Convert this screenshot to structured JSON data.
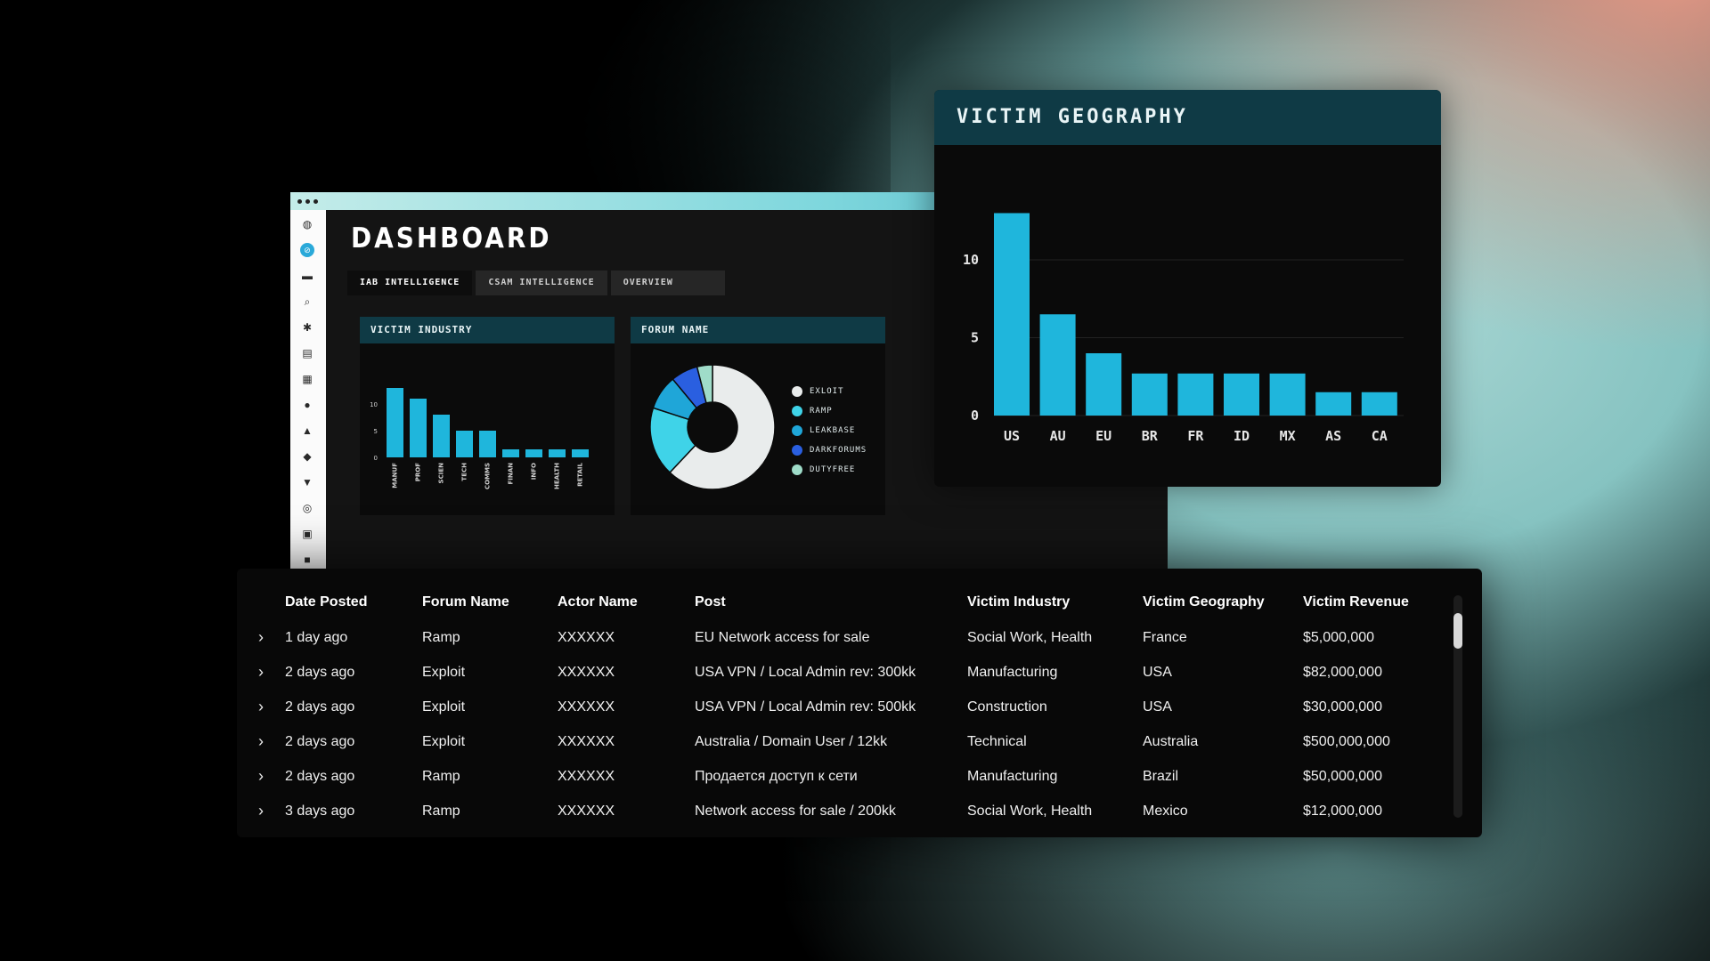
{
  "dashboard": {
    "title": "DASHBOARD",
    "tabs": [
      {
        "label": "IAB INTELLIGENCE",
        "active": true
      },
      {
        "label": "CSAM INTELLIGENCE",
        "active": false
      },
      {
        "label": "OVERVIEW",
        "active": false
      }
    ],
    "sidebar_icons": [
      "logo-icon",
      "compass-icon",
      "folder-icon",
      "search-icon",
      "wand-icon",
      "book-icon",
      "document-icon",
      "globe-icon",
      "lock-icon",
      "chat-icon",
      "cart-icon",
      "target-icon",
      "copy-icon",
      "more-icon"
    ]
  },
  "chart_data": [
    {
      "type": "bar",
      "title": "VICTIM INDUSTRY",
      "categories": [
        "MANUF",
        "PROF",
        "SCIEN",
        "TECH",
        "COMMS",
        "FINAN",
        "INFO",
        "HEALTH",
        "RETAIL"
      ],
      "values": [
        13,
        11,
        8,
        5,
        5,
        1.5,
        1.5,
        1.5,
        1.5
      ],
      "yticks": [
        0,
        5,
        10
      ],
      "ylim": [
        0,
        15
      ],
      "color": "#1fb6dc"
    },
    {
      "type": "pie",
      "title": "FORUM NAME",
      "labels": [
        "EXLOIT",
        "RAMP",
        "LEAKBASE",
        "DARKFORUMS",
        "DUTYFREE"
      ],
      "values": [
        62,
        18,
        9,
        7,
        4
      ],
      "colors": [
        "#e9ecec",
        "#3fd3e8",
        "#1fa6d8",
        "#2a5fe0",
        "#9fdcc9"
      ],
      "donut": true
    },
    {
      "type": "bar",
      "title": "VICTIM GEOGRAPHY",
      "categories": [
        "US",
        "AU",
        "EU",
        "BR",
        "FR",
        "ID",
        "MX",
        "AS",
        "CA"
      ],
      "values": [
        13,
        6.5,
        4,
        2.7,
        2.7,
        2.7,
        2.7,
        1.5,
        1.5
      ],
      "yticks": [
        0,
        5,
        10
      ],
      "ylim": [
        0,
        14
      ],
      "color": "#1fb6dc",
      "grid": true
    }
  ],
  "table": {
    "columns": [
      "Date Posted",
      "Forum Name",
      "Actor Name",
      "Post",
      "Victim Industry",
      "Victim Geography",
      "Victim Revenue"
    ],
    "rows": [
      [
        "1 day ago",
        "Ramp",
        "XXXXXX",
        "EU Network access for sale",
        "Social Work, Health",
        "France",
        "$5,000,000"
      ],
      [
        "2 days ago",
        "Exploit",
        "XXXXXX",
        "USA VPN / Local Admin rev: 300kk",
        "Manufacturing",
        "USA",
        "$82,000,000"
      ],
      [
        "2 days ago",
        "Exploit",
        "XXXXXX",
        "USA VPN / Local Admin rev: 500kk",
        "Construction",
        "USA",
        "$30,000,000"
      ],
      [
        "2 days ago",
        "Exploit",
        "XXXXXX",
        "Australia / Domain User / 12kk",
        "Technical",
        "Australia",
        "$500,000,000"
      ],
      [
        "2 days ago",
        "Ramp",
        "XXXXXX",
        "Продается доступ к сети",
        "Manufacturing",
        "Brazil",
        "$50,000,000"
      ],
      [
        "3 days ago",
        "Ramp",
        "XXXXXX",
        "Network access for sale / 200kk",
        "Social Work, Health",
        "Mexico",
        "$12,000,000"
      ]
    ]
  }
}
